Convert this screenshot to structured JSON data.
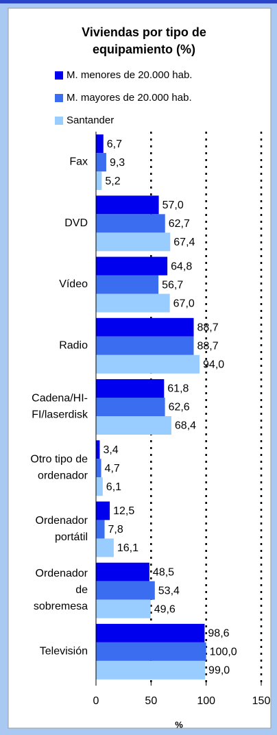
{
  "chart_data": {
    "type": "barh",
    "title": "Viviendas por tipo de equipamiento (%)",
    "title_lines": [
      "Viviendas por tipo de",
      "equipamiento (%)"
    ],
    "xlabel": "%",
    "categories": [
      "Fax",
      "DVD",
      "Vídeo",
      "Radio",
      "Cadena/HI-\nFI/laserdisk",
      "Otro tipo de\nordenador",
      "Ordenador\nportátil",
      "Ordenador\nde\nsobremesa",
      "Televisión"
    ],
    "series": [
      {
        "name": "M. menores de 20.000 hab.",
        "color": "#0000ee",
        "values": [
          6.7,
          57.0,
          64.8,
          88.7,
          61.8,
          3.4,
          12.5,
          48.5,
          98.6
        ],
        "value_labels": [
          "6,7",
          "57,0",
          "64,8",
          "88,7",
          "61,8",
          "3,4",
          "12,5",
          "48,5",
          "98,6"
        ]
      },
      {
        "name": "M. mayores de 20.000 hab.",
        "color": "#3a6df0",
        "values": [
          9.3,
          62.7,
          56.7,
          88.7,
          62.6,
          4.7,
          7.8,
          53.4,
          100.0
        ],
        "value_labels": [
          "9,3",
          "62,7",
          "56,7",
          "88,7",
          "62,6",
          "4,7",
          "7,8",
          "53,4",
          "100,0"
        ]
      },
      {
        "name": "Santander",
        "color": "#99ccff",
        "values": [
          5.2,
          67.4,
          67.0,
          94.0,
          68.4,
          6.1,
          16.1,
          49.6,
          99.0
        ],
        "value_labels": [
          "5,2",
          "67,4",
          "67,0",
          "94,0",
          "68,4",
          "6,1",
          "16,1",
          "49,6",
          "99,0"
        ]
      }
    ],
    "xlim": [
      0,
      150
    ],
    "xticks": [
      0,
      50,
      100,
      150
    ],
    "grid": true,
    "grid_style": "dotted"
  }
}
